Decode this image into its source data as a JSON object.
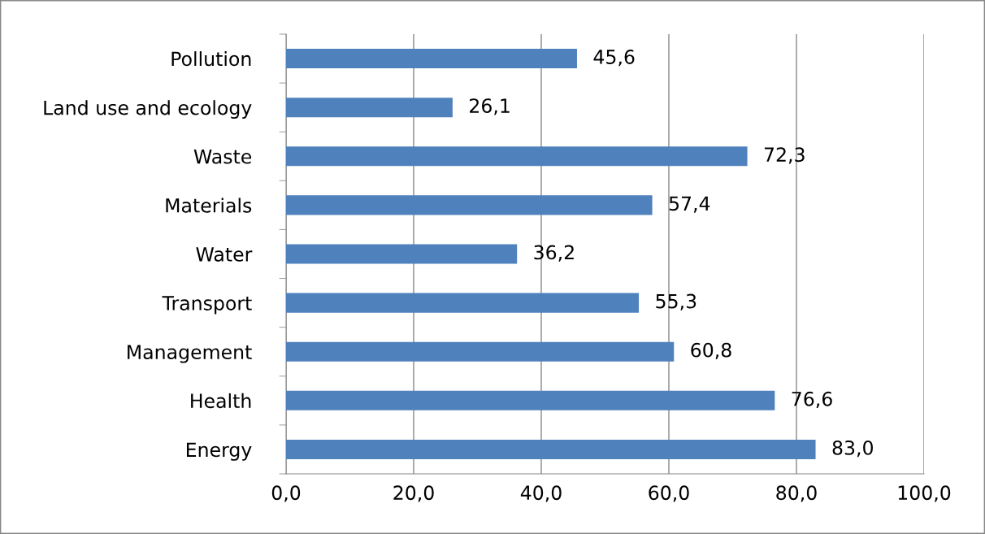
{
  "chart_data": {
    "type": "bar",
    "orientation": "horizontal",
    "categories": [
      "Pollution",
      "Land use and ecology",
      "Waste",
      "Materials",
      "Water",
      "Transport",
      "Management",
      "Health",
      "Energy"
    ],
    "values": [
      45.6,
      26.1,
      72.3,
      57.4,
      36.2,
      55.3,
      60.8,
      76.6,
      83.0
    ],
    "value_labels": [
      "45,6",
      "26,1",
      "72,3",
      "57,4",
      "36,2",
      "55,3",
      "60,8",
      "76,6",
      "83,0"
    ],
    "color": "#4f81bd",
    "xlim": [
      0,
      100
    ],
    "xticks": [
      {
        "value": 0,
        "label": "0,0"
      },
      {
        "value": 20,
        "label": "20,0"
      },
      {
        "value": 40,
        "label": "40,0"
      },
      {
        "value": 60,
        "label": "60,0"
      },
      {
        "value": 80,
        "label": "80,0"
      },
      {
        "value": 100,
        "label": "100,0"
      }
    ],
    "grid": "x",
    "legend": false
  }
}
